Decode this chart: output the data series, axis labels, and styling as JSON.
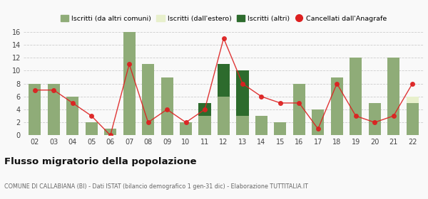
{
  "years": [
    "02",
    "03",
    "04",
    "05",
    "06",
    "07",
    "08",
    "09",
    "10",
    "11",
    "12",
    "13",
    "14",
    "15",
    "16",
    "17",
    "18",
    "19",
    "20",
    "21",
    "22"
  ],
  "iscritti_altri_comuni": [
    8,
    8,
    6,
    2,
    1,
    16,
    11,
    9,
    2,
    3,
    6,
    3,
    3,
    2,
    8,
    4,
    9,
    12,
    5,
    12,
    5
  ],
  "iscritti_estero": [
    0,
    0,
    0,
    0,
    0,
    0,
    0,
    0,
    0,
    0,
    0,
    0,
    0,
    0,
    0,
    0,
    0,
    0,
    0,
    0,
    1
  ],
  "iscritti_altri": [
    0,
    0,
    0,
    0,
    0,
    0,
    0,
    0,
    0,
    2,
    5,
    7,
    0,
    0,
    0,
    0,
    0,
    0,
    0,
    0,
    0
  ],
  "cancellati": [
    7,
    7,
    5,
    3,
    0,
    11,
    2,
    4,
    2,
    4,
    15,
    8,
    6,
    5,
    5,
    1,
    8,
    3,
    2,
    3,
    8
  ],
  "color_altri_comuni": "#8fac78",
  "color_estero": "#e8f0cc",
  "color_altri": "#2d6b2d",
  "color_cancellati": "#dd2020",
  "title": "Flusso migratorio della popolazione",
  "subtitle": "COMUNE DI CALLABIANA (BI) - Dati ISTAT (bilancio demografico 1 gen-31 dic) - Elaborazione TUTTITALIA.IT",
  "legend_labels": [
    "Iscritti (da altri comuni)",
    "Iscritti (dall'estero)",
    "Iscritti (altri)",
    "Cancellati dall'Anagrafe"
  ],
  "ylim": [
    0,
    16
  ],
  "yticks": [
    0,
    2,
    4,
    6,
    8,
    10,
    12,
    14,
    16
  ],
  "background_color": "#f9f9f9"
}
